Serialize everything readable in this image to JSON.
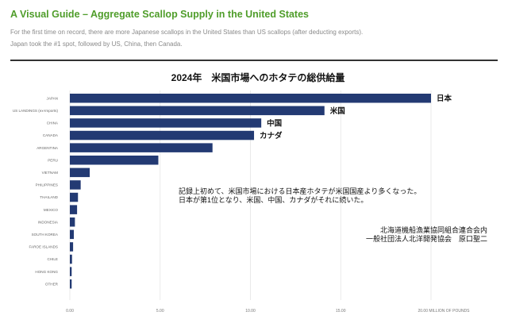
{
  "header": {
    "title": "A Visual Guide – Aggregate Scallop Supply in the United States",
    "subtitle_line1": "For the first time on record, there are more Japanese scallops in the United States than US scallops (after deducting exports).",
    "subtitle_line2": "Japan took the #1 spot, followed by US, China, then Canada."
  },
  "colors": {
    "title": "#4f9d2a",
    "bar": "#233a73",
    "rule": "#333333"
  },
  "chart_data": {
    "type": "bar",
    "orientation": "horizontal",
    "title": "2024年　米国市場へのホタテの総供給量",
    "categories": [
      "JAPAN",
      "US LANDINGS (ex-Imports)",
      "CHINA",
      "CANADA",
      "ARGENTINA",
      "PERU",
      "VIETNAM",
      "PHILIPPINES",
      "THAILAND",
      "MEXICO",
      "INDONESIA",
      "SOUTH KOREA",
      "FAROE ISLANDS",
      "CHILE",
      "HONG KONG",
      "OTHER"
    ],
    "values": [
      20.0,
      14.1,
      10.6,
      10.2,
      7.9,
      4.9,
      1.1,
      0.6,
      0.45,
      0.4,
      0.28,
      0.22,
      0.18,
      0.12,
      0.1,
      0.1
    ],
    "bar_labels": [
      "日本",
      "米国",
      "中国",
      "カナダ",
      "",
      "",
      "",
      "",
      "",
      "",
      "",
      "",
      "",
      "",
      "",
      ""
    ],
    "xticks": [
      "0.00",
      "5.00",
      "10.00",
      "15.00",
      "20.00 MILLION OF POUNDS"
    ],
    "xlim": [
      0,
      20.5
    ],
    "grid": true,
    "annotation_lines": [
      "記録上初めて、米国市場における日本産ホタテが米国国産より多くなった。",
      "日本が第1位となり、米国、中国、カナダがそれに続いた。"
    ],
    "credit_lines": [
      "北海道機船漁業協同組合連合会内",
      "一般社団法人北洋開発協会　原口聖二"
    ]
  }
}
